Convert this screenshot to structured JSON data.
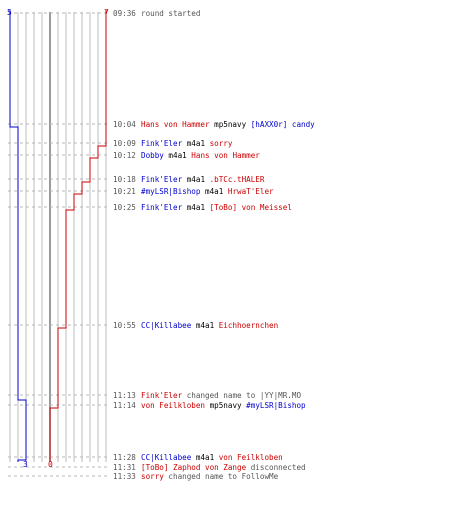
{
  "scores": {
    "left_top": "5",
    "right_top": "7",
    "left_bottom": "3",
    "right_bottom": "0"
  },
  "colors": {
    "blue": "#0000cc",
    "red": "#cc0000",
    "grey_text": "#555555",
    "grid": "#bdbdbd",
    "center": "#808080",
    "dash": "#b8b8b8"
  },
  "events": [
    {
      "time": "09:36",
      "segments": [
        {
          "text": "round started",
          "color": "grey"
        }
      ]
    },
    {
      "time": "10:04",
      "segments": [
        {
          "text": "Hans von Hammer",
          "color": "red"
        },
        {
          "text": " mp5navy ",
          "color": "black"
        },
        {
          "text": "[hAXX0r] candy",
          "color": "blue"
        }
      ]
    },
    {
      "time": "10:09",
      "segments": [
        {
          "text": "Fink'Eler",
          "color": "blue"
        },
        {
          "text": " m4a1 ",
          "color": "black"
        },
        {
          "text": "sorry",
          "color": "red"
        }
      ]
    },
    {
      "time": "10:12",
      "segments": [
        {
          "text": "Dobby",
          "color": "blue"
        },
        {
          "text": " m4a1 ",
          "color": "black"
        },
        {
          "text": "Hans von Hammer",
          "color": "red"
        }
      ]
    },
    {
      "time": "10:18",
      "segments": [
        {
          "text": "Fink'Eler",
          "color": "blue"
        },
        {
          "text": " m4a1 ",
          "color": "black"
        },
        {
          "text": ".bTCc.tHALER",
          "color": "red"
        }
      ]
    },
    {
      "time": "10:21",
      "segments": [
        {
          "text": "#myLSR|Bishop",
          "color": "blue"
        },
        {
          "text": " m4a1 ",
          "color": "black"
        },
        {
          "text": "HrwaT'Eler",
          "color": "red"
        }
      ]
    },
    {
      "time": "10:25",
      "segments": [
        {
          "text": "Fink'Eler",
          "color": "blue"
        },
        {
          "text": " m4a1 ",
          "color": "black"
        },
        {
          "text": "[ToBo] von Meissel",
          "color": "red"
        }
      ]
    },
    {
      "time": "10:55",
      "segments": [
        {
          "text": "CC|Killabee",
          "color": "blue"
        },
        {
          "text": " m4a1 ",
          "color": "black"
        },
        {
          "text": "Eichhoernchen",
          "color": "red"
        }
      ]
    },
    {
      "time": "11:13",
      "segments": [
        {
          "text": "Fink'Eler",
          "color": "red"
        },
        {
          "text": " changed name to |YY|MR.MO",
          "color": "grey"
        }
      ]
    },
    {
      "time": "11:14",
      "segments": [
        {
          "text": "von Feilkloben",
          "color": "red"
        },
        {
          "text": " mp5navy ",
          "color": "black"
        },
        {
          "text": "#myLSR|Bishop",
          "color": "blue"
        }
      ]
    },
    {
      "time": "11:28",
      "segments": [
        {
          "text": "CC|Killabee",
          "color": "blue"
        },
        {
          "text": " m4a1 ",
          "color": "black"
        },
        {
          "text": "von Feilkloben",
          "color": "red"
        }
      ]
    },
    {
      "time": "11:31",
      "segments": [
        {
          "text": "[ToBo] Zaphod von Zange",
          "color": "red"
        },
        {
          "text": " disconnected",
          "color": "grey"
        }
      ]
    },
    {
      "time": "11:33",
      "segments": [
        {
          "text": "sorry",
          "color": "red"
        },
        {
          "text": " changed name to FollowMe",
          "color": "grey"
        }
      ]
    }
  ]
}
